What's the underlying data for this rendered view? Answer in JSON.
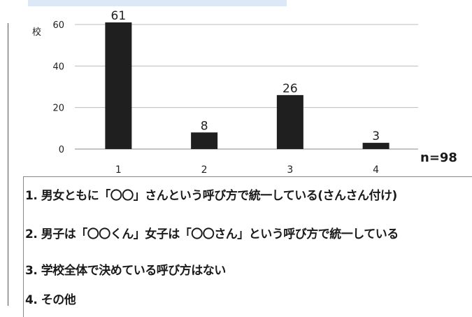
{
  "chart_data": {
    "type": "bar",
    "categories": [
      "1",
      "2",
      "3",
      "4"
    ],
    "values": [
      61,
      8,
      26,
      3
    ],
    "ylabel": "校",
    "yticks": [
      0,
      20,
      40,
      60
    ],
    "ylim": [
      0,
      66
    ],
    "grid": true,
    "bar_color": "#1f1f1f",
    "note": "n=98"
  },
  "legend": [
    "1. 男女ともに「〇〇」さんという呼び方で統一している(さんさん付け)",
    "2. 男子は「〇〇くん」女子は「〇〇さん」という呼び方で統一している",
    "3. 学校全体で決めている呼び方はない",
    "4. その他"
  ]
}
